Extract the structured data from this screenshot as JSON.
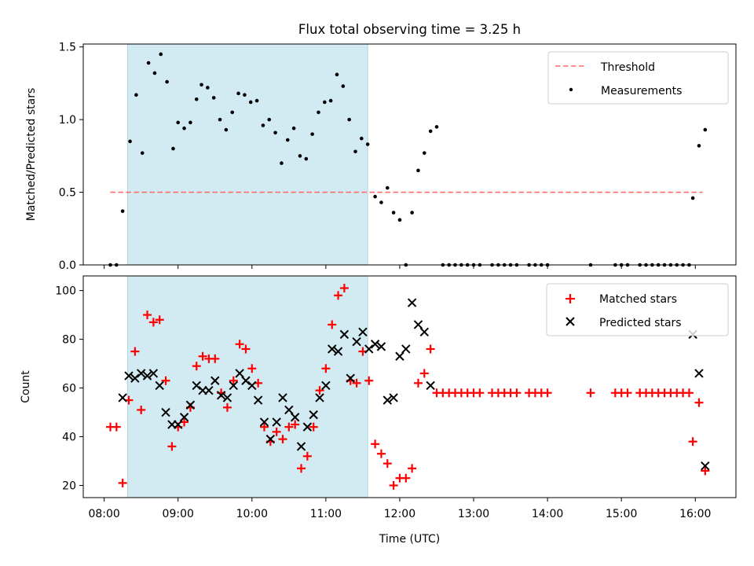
{
  "chart_data": {
    "title": "Flux total observing time = 3.25 h",
    "xlabel": "Time (UTC)",
    "x_ticks": [
      "08:00",
      "09:00",
      "10:00",
      "11:00",
      "12:00",
      "13:00",
      "14:00",
      "15:00",
      "16:00"
    ],
    "x_range": [
      "07:43",
      "16:33"
    ],
    "highlight_span": {
      "start": "08:19",
      "end": "11:34",
      "color": "#add8e6"
    },
    "panels": [
      {
        "type": "scatter",
        "ylabel": "Matched/Predicted stars",
        "ylim": [
          0,
          1.52
        ],
        "y_ticks": [
          "0.0",
          "0.5",
          "1.0",
          "1.5"
        ],
        "legend": "top-right",
        "threshold": {
          "name": "Threshold",
          "value": 0.5,
          "x_start": "08:05",
          "x_end": "16:06",
          "color": "#ff6b6b"
        },
        "series": [
          {
            "name": "Measurements",
            "color": "#000000",
            "points": [
              [
                "08:05",
                0.0
              ],
              [
                "08:10",
                0.0
              ],
              [
                "08:15",
                0.37
              ],
              [
                "08:21",
                0.85
              ],
              [
                "08:26",
                1.17
              ],
              [
                "08:31",
                0.77
              ],
              [
                "08:36",
                1.39
              ],
              [
                "08:41",
                1.32
              ],
              [
                "08:46",
                1.45
              ],
              [
                "08:51",
                1.26
              ],
              [
                "08:56",
                0.8
              ],
              [
                "09:00",
                0.98
              ],
              [
                "09:05",
                0.94
              ],
              [
                "09:10",
                0.98
              ],
              [
                "09:15",
                1.14
              ],
              [
                "09:19",
                1.24
              ],
              [
                "09:24",
                1.22
              ],
              [
                "09:29",
                1.15
              ],
              [
                "09:34",
                1.0
              ],
              [
                "09:39",
                0.93
              ],
              [
                "09:44",
                1.05
              ],
              [
                "09:49",
                1.18
              ],
              [
                "09:54",
                1.17
              ],
              [
                "09:59",
                1.12
              ],
              [
                "10:04",
                1.13
              ],
              [
                "10:09",
                0.96
              ],
              [
                "10:14",
                1.0
              ],
              [
                "10:19",
                0.91
              ],
              [
                "10:24",
                0.7
              ],
              [
                "10:29",
                0.86
              ],
              [
                "10:34",
                0.94
              ],
              [
                "10:39",
                0.75
              ],
              [
                "10:44",
                0.73
              ],
              [
                "10:49",
                0.9
              ],
              [
                "10:54",
                1.05
              ],
              [
                "10:59",
                1.12
              ],
              [
                "11:04",
                1.13
              ],
              [
                "11:09",
                1.31
              ],
              [
                "11:14",
                1.23
              ],
              [
                "11:19",
                1.0
              ],
              [
                "11:24",
                0.78
              ],
              [
                "11:29",
                0.87
              ],
              [
                "11:34",
                0.83
              ],
              [
                "11:40",
                0.47
              ],
              [
                "11:45",
                0.43
              ],
              [
                "11:50",
                0.53
              ],
              [
                "11:55",
                0.36
              ],
              [
                "12:00",
                0.31
              ],
              [
                "12:05",
                0.0
              ],
              [
                "12:10",
                0.36
              ],
              [
                "12:15",
                0.65
              ],
              [
                "12:20",
                0.77
              ],
              [
                "12:25",
                0.92
              ],
              [
                "12:30",
                0.95
              ],
              [
                "12:35",
                0.0
              ],
              [
                "12:40",
                0.0
              ],
              [
                "12:45",
                0.0
              ],
              [
                "12:50",
                0.0
              ],
              [
                "12:55",
                0.0
              ],
              [
                "13:00",
                0.0
              ],
              [
                "13:05",
                0.0
              ],
              [
                "13:15",
                0.0
              ],
              [
                "13:20",
                0.0
              ],
              [
                "13:25",
                0.0
              ],
              [
                "13:30",
                0.0
              ],
              [
                "13:35",
                0.0
              ],
              [
                "13:45",
                0.0
              ],
              [
                "13:50",
                0.0
              ],
              [
                "13:55",
                0.0
              ],
              [
                "14:00",
                0.0
              ],
              [
                "14:35",
                0.0
              ],
              [
                "14:55",
                0.0
              ],
              [
                "15:00",
                0.0
              ],
              [
                "15:05",
                0.0
              ],
              [
                "15:15",
                0.0
              ],
              [
                "15:20",
                0.0
              ],
              [
                "15:25",
                0.0
              ],
              [
                "15:30",
                0.0
              ],
              [
                "15:35",
                0.0
              ],
              [
                "15:40",
                0.0
              ],
              [
                "15:45",
                0.0
              ],
              [
                "15:50",
                0.0
              ],
              [
                "15:55",
                0.0
              ],
              [
                "15:58",
                0.46
              ],
              [
                "16:03",
                0.82
              ],
              [
                "16:08",
                0.93
              ]
            ]
          }
        ]
      },
      {
        "type": "scatter",
        "ylabel": "Count",
        "ylim": [
          15,
          106
        ],
        "y_ticks": [
          "20",
          "40",
          "60",
          "80",
          "100"
        ],
        "legend": "top-right",
        "series": [
          {
            "name": "Matched stars",
            "color": "#ff0000",
            "marker": "plus",
            "points": [
              [
                "08:05",
                44
              ],
              [
                "08:10",
                44
              ],
              [
                "08:15",
                21
              ],
              [
                "08:20",
                55
              ],
              [
                "08:25",
                75
              ],
              [
                "08:30",
                51
              ],
              [
                "08:35",
                90
              ],
              [
                "08:40",
                87
              ],
              [
                "08:45",
                88
              ],
              [
                "08:50",
                63
              ],
              [
                "08:55",
                36
              ],
              [
                "09:00",
                44
              ],
              [
                "09:05",
                46
              ],
              [
                "09:10",
                52
              ],
              [
                "09:15",
                69
              ],
              [
                "09:20",
                73
              ],
              [
                "09:25",
                72
              ],
              [
                "09:30",
                72
              ],
              [
                "09:35",
                58
              ],
              [
                "09:40",
                52
              ],
              [
                "09:45",
                63
              ],
              [
                "09:50",
                78
              ],
              [
                "09:55",
                76
              ],
              [
                "10:00",
                68
              ],
              [
                "10:05",
                62
              ],
              [
                "10:10",
                44
              ],
              [
                "10:15",
                38
              ],
              [
                "10:20",
                42
              ],
              [
                "10:25",
                39
              ],
              [
                "10:30",
                44
              ],
              [
                "10:35",
                45
              ],
              [
                "10:40",
                27
              ],
              [
                "10:45",
                32
              ],
              [
                "10:50",
                44
              ],
              [
                "10:55",
                59
              ],
              [
                "11:00",
                68
              ],
              [
                "11:05",
                86
              ],
              [
                "11:10",
                98
              ],
              [
                "11:15",
                101
              ],
              [
                "11:20",
                63
              ],
              [
                "11:25",
                62
              ],
              [
                "11:30",
                75
              ],
              [
                "11:35",
                63
              ],
              [
                "11:40",
                37
              ],
              [
                "11:45",
                33
              ],
              [
                "11:50",
                29
              ],
              [
                "11:55",
                20
              ],
              [
                "12:00",
                23
              ],
              [
                "12:05",
                23
              ],
              [
                "12:10",
                27
              ],
              [
                "12:15",
                62
              ],
              [
                "12:20",
                66
              ],
              [
                "12:25",
                76
              ],
              [
                "12:30",
                58
              ],
              [
                "12:35",
                58
              ],
              [
                "12:40",
                58
              ],
              [
                "12:45",
                58
              ],
              [
                "12:50",
                58
              ],
              [
                "12:55",
                58
              ],
              [
                "13:00",
                58
              ],
              [
                "13:05",
                58
              ],
              [
                "13:15",
                58
              ],
              [
                "13:20",
                58
              ],
              [
                "13:25",
                58
              ],
              [
                "13:30",
                58
              ],
              [
                "13:35",
                58
              ],
              [
                "13:45",
                58
              ],
              [
                "13:50",
                58
              ],
              [
                "13:55",
                58
              ],
              [
                "14:00",
                58
              ],
              [
                "14:35",
                58
              ],
              [
                "14:55",
                58
              ],
              [
                "15:00",
                58
              ],
              [
                "15:05",
                58
              ],
              [
                "15:15",
                58
              ],
              [
                "15:20",
                58
              ],
              [
                "15:25",
                58
              ],
              [
                "15:30",
                58
              ],
              [
                "15:35",
                58
              ],
              [
                "15:40",
                58
              ],
              [
                "15:45",
                58
              ],
              [
                "15:50",
                58
              ],
              [
                "15:55",
                58
              ],
              [
                "15:58",
                38
              ],
              [
                "16:03",
                54
              ],
              [
                "16:08",
                26
              ]
            ]
          },
          {
            "name": "Predicted stars",
            "color": "#000000",
            "marker": "x",
            "points": [
              [
                "08:15",
                56
              ],
              [
                "08:20",
                65
              ],
              [
                "08:25",
                64
              ],
              [
                "08:30",
                66
              ],
              [
                "08:35",
                65
              ],
              [
                "08:40",
                66
              ],
              [
                "08:45",
                61
              ],
              [
                "08:50",
                50
              ],
              [
                "08:55",
                45
              ],
              [
                "09:00",
                45
              ],
              [
                "09:05",
                48
              ],
              [
                "09:10",
                53
              ],
              [
                "09:15",
                61
              ],
              [
                "09:20",
                59
              ],
              [
                "09:25",
                59
              ],
              [
                "09:30",
                63
              ],
              [
                "09:35",
                57
              ],
              [
                "09:40",
                56
              ],
              [
                "09:45",
                61
              ],
              [
                "09:50",
                66
              ],
              [
                "09:55",
                63
              ],
              [
                "10:00",
                61
              ],
              [
                "10:05",
                55
              ],
              [
                "10:10",
                46
              ],
              [
                "10:15",
                39
              ],
              [
                "10:20",
                46
              ],
              [
                "10:25",
                56
              ],
              [
                "10:30",
                51
              ],
              [
                "10:35",
                48
              ],
              [
                "10:40",
                36
              ],
              [
                "10:45",
                44
              ],
              [
                "10:50",
                49
              ],
              [
                "10:55",
                56
              ],
              [
                "11:00",
                61
              ],
              [
                "11:05",
                76
              ],
              [
                "11:10",
                75
              ],
              [
                "11:15",
                82
              ],
              [
                "11:20",
                64
              ],
              [
                "11:25",
                79
              ],
              [
                "11:30",
                83
              ],
              [
                "11:35",
                76
              ],
              [
                "11:40",
                78
              ],
              [
                "11:45",
                77
              ],
              [
                "11:50",
                55
              ],
              [
                "11:55",
                56
              ],
              [
                "12:00",
                73
              ],
              [
                "12:05",
                76
              ],
              [
                "12:10",
                95
              ],
              [
                "12:15",
                86
              ],
              [
                "12:20",
                83
              ],
              [
                "12:25",
                61
              ],
              [
                "15:58",
                82
              ],
              [
                "16:03",
                66
              ],
              [
                "16:08",
                28
              ]
            ]
          }
        ]
      }
    ]
  }
}
